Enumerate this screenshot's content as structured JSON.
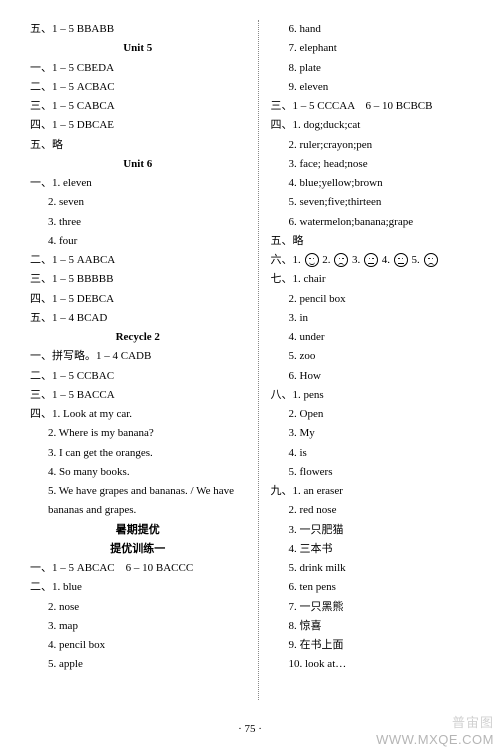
{
  "page_number": "· 75 ·",
  "watermark_top": "普宙图",
  "watermark_bottom": "WWW.MXQE.COM",
  "left": {
    "l1": "五、1 – 5 BBABB",
    "unit5": "Unit 5",
    "u5_1": "一、1 – 5 CBEDA",
    "u5_2": "二、1 – 5 ACBAC",
    "u5_3": "三、1 – 5 CABCA",
    "u5_4": "四、1 – 5 DBCAE",
    "u5_5": "五、略",
    "unit6": "Unit 6",
    "u6_1": "一、1. eleven",
    "u6_1_2": "2. seven",
    "u6_1_3": "3. three",
    "u6_1_4": "4. four",
    "u6_2": "二、1 – 5 AABCA",
    "u6_3": "三、1 – 5 BBBBB",
    "u6_4": "四、1 – 5 DEBCA",
    "u6_5": "五、1 – 4 BCAD",
    "recycle2": "Recycle 2",
    "r2_1": "一、拼写略。1 – 4 CADB",
    "r2_2": "二、1 – 5 CCBAC",
    "r2_3": "三、1 – 5 BACCA",
    "r2_4": "四、1. Look at my car.",
    "r2_4_2": "2. Where is my banana?",
    "r2_4_3": "3. I can get the oranges.",
    "r2_4_4": "4. So many books.",
    "r2_4_5": "5. We have grapes and bananas. / We have",
    "r2_4_5b": "bananas and grapes.",
    "sum_title": "暑期提优",
    "sum_sub": "提优训练一",
    "s1": "一、1 – 5 ABCAC　6 – 10 BACCC",
    "s2": "二、1. blue",
    "s2_2": "2. nose",
    "s2_3": "3. map",
    "s2_4": "4. pencil box",
    "s2_5": "5. apple"
  },
  "right": {
    "r1": "6. hand",
    "r2": "7. elephant",
    "r3": "8. plate",
    "r4": "9. eleven",
    "r5": "三、1 – 5 CCCAA　6 – 10 BCBCB",
    "r6": "四、1. dog;duck;cat",
    "r6_2": "2. ruler;crayon;pen",
    "r6_3": "3. face; head;nose",
    "r6_4": "4. blue;yellow;brown",
    "r6_5": "5. seven;five;thirteen",
    "r6_6": "6. watermelon;banana;grape",
    "r7": "五、略",
    "six_label": "六、1.",
    "six_2": "2.",
    "six_3": "3.",
    "six_4": "4.",
    "six_5": "5.",
    "r8": "七、1. chair",
    "r8_2": "2. pencil box",
    "r8_3": "3. in",
    "r8_4": "4. under",
    "r8_5": "5. zoo",
    "r8_6": "6. How",
    "r9": "八、1. pens",
    "r9_2": "2. Open",
    "r9_3": "3. My",
    "r9_4": "4. is",
    "r9_5": "5. flowers",
    "r10": "九、1. an eraser",
    "r10_2": "2. red nose",
    "r10_3": "3. 一只肥猫",
    "r10_4": "4. 三本书",
    "r10_5": "5. drink milk",
    "r10_6": "6. ten pens",
    "r10_7": "7. 一只黑熊",
    "r10_8": "8. 惊喜",
    "r10_9": "9. 在书上面",
    "r10_10": "10. look at…"
  },
  "faces": [
    "smile",
    "sad",
    "neutral",
    "neutral",
    "sad"
  ]
}
